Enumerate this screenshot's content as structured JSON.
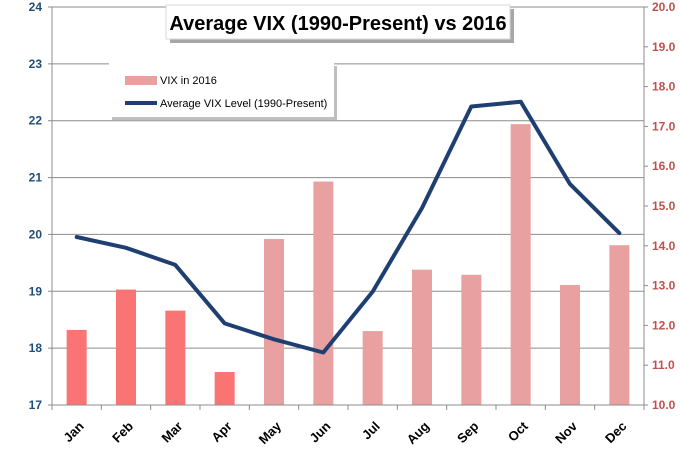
{
  "chart_data": {
    "type": "bar",
    "title": "Average VIX (1990-Present) vs 2016",
    "categories": [
      "Jan",
      "Feb",
      "Mar",
      "Apr",
      "May",
      "Jun",
      "Jul",
      "Aug",
      "Sep",
      "Oct",
      "Nov",
      "Dec"
    ],
    "series": [
      {
        "name": "VIX in 2016",
        "type": "bar",
        "axis": "left",
        "values": [
          18.32,
          19.03,
          18.66,
          17.58,
          19.92,
          20.93,
          18.3,
          19.38,
          19.29,
          21.94,
          19.11,
          19.81
        ],
        "colors": [
          "#fa7474",
          "#fa7474",
          "#fa7474",
          "#fa7474",
          "#e8a0a0",
          "#e8a0a0",
          "#e8a0a0",
          "#e8a0a0",
          "#e8a0a0",
          "#e8a0a0",
          "#e8a0a0",
          "#e8a0a0"
        ]
      },
      {
        "name": "Average VIX Level (1990-Present)",
        "type": "line",
        "axis": "right",
        "color": "#1f3f73",
        "values": [
          14.22,
          13.95,
          13.52,
          12.05,
          11.65,
          11.32,
          12.85,
          14.95,
          17.5,
          17.62,
          15.55,
          14.32
        ]
      }
    ],
    "y_left": {
      "min": 17,
      "max": 24,
      "step": 1,
      "tick_labels": [
        "17",
        "18",
        "19",
        "20",
        "21",
        "22",
        "23",
        "24"
      ]
    },
    "y_right": {
      "min": 10.0,
      "max": 20.0,
      "step": 1.0,
      "tick_labels": [
        "10.0",
        "11.0",
        "12.0",
        "13.0",
        "14.0",
        "15.0",
        "16.0",
        "17.0",
        "18.0",
        "19.0",
        "20.0"
      ]
    },
    "grid": true,
    "legend_position": "top-left"
  }
}
